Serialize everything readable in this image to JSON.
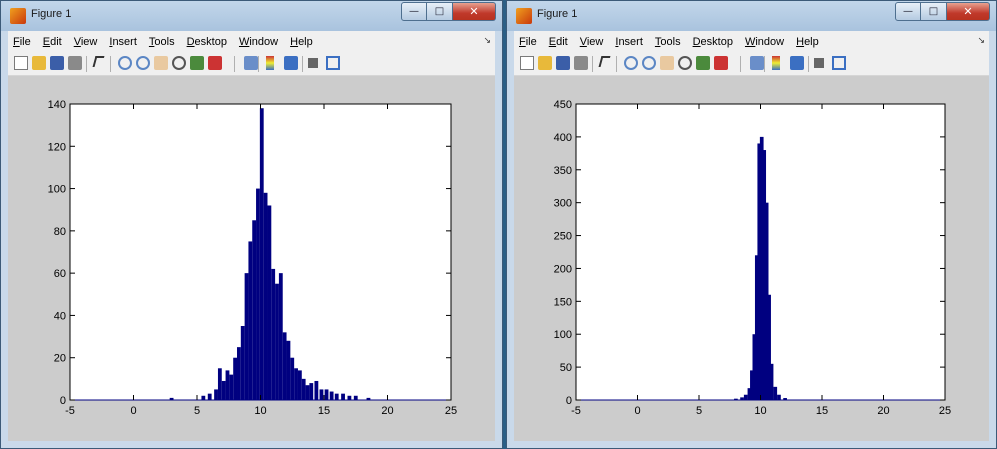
{
  "windows": [
    {
      "title": "Figure 1",
      "menu": [
        "File",
        "Edit",
        "View",
        "Insert",
        "Tools",
        "Desktop",
        "Window",
        "Help"
      ],
      "underlines": [
        "F",
        "E",
        "V",
        "I",
        "T",
        "D",
        "W",
        "H"
      ],
      "chart_data": {
        "type": "bar",
        "title": "",
        "xlabel": "",
        "ylabel": "",
        "xlim": [
          -5,
          25
        ],
        "ylim": [
          0,
          140
        ],
        "xticks": [
          -5,
          0,
          5,
          10,
          15,
          20,
          25
        ],
        "yticks": [
          0,
          20,
          40,
          60,
          80,
          100,
          120,
          140
        ],
        "bar_color": "#000080",
        "x": [
          3,
          5.5,
          6,
          6.5,
          6.8,
          7.1,
          7.4,
          7.7,
          8,
          8.3,
          8.6,
          8.9,
          9.2,
          9.5,
          9.8,
          10.1,
          10.4,
          10.7,
          11,
          11.3,
          11.6,
          11.9,
          12.2,
          12.5,
          12.8,
          13.1,
          13.4,
          13.7,
          14,
          14.4,
          14.8,
          15.2,
          15.6,
          16,
          16.5,
          17,
          17.5,
          18.5
        ],
        "values": [
          1,
          2,
          3,
          5,
          15,
          9,
          14,
          12,
          20,
          25,
          35,
          60,
          75,
          85,
          100,
          138,
          98,
          92,
          62,
          55,
          60,
          32,
          28,
          20,
          15,
          14,
          10,
          7,
          8,
          9,
          5,
          5,
          4,
          3,
          3,
          2,
          2,
          1
        ]
      }
    },
    {
      "title": "Figure 1",
      "menu": [
        "File",
        "Edit",
        "View",
        "Insert",
        "Tools",
        "Desktop",
        "Window",
        "Help"
      ],
      "underlines": [
        "F",
        "E",
        "V",
        "I",
        "T",
        "D",
        "W",
        "H"
      ],
      "chart_data": {
        "type": "bar",
        "title": "",
        "xlabel": "",
        "ylabel": "",
        "xlim": [
          -5,
          25
        ],
        "ylim": [
          0,
          450
        ],
        "xticks": [
          -5,
          0,
          5,
          10,
          15,
          20,
          25
        ],
        "yticks": [
          0,
          50,
          100,
          150,
          200,
          250,
          300,
          350,
          400,
          450
        ],
        "bar_color": "#000080",
        "x": [
          8,
          8.5,
          8.8,
          9.1,
          9.3,
          9.5,
          9.7,
          9.9,
          10.1,
          10.3,
          10.5,
          10.7,
          10.9,
          11.2,
          11.5,
          12
        ],
        "values": [
          2,
          4,
          8,
          18,
          45,
          100,
          220,
          390,
          400,
          380,
          300,
          160,
          55,
          20,
          8,
          3
        ]
      }
    }
  ]
}
